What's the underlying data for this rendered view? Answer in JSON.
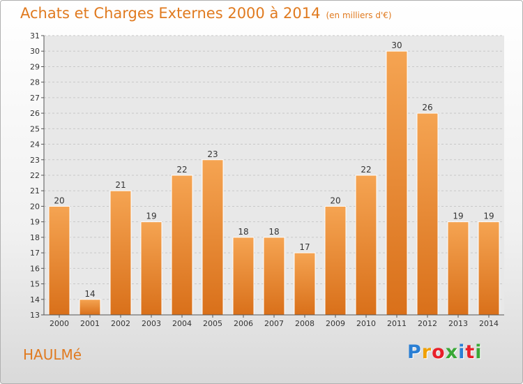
{
  "chart_data": {
    "type": "bar",
    "title": "Achats et Charges Externes 2000 à 2014",
    "unit": "(en milliers d'€)",
    "categories": [
      "2000",
      "2001",
      "2002",
      "2003",
      "2004",
      "2005",
      "2006",
      "2007",
      "2008",
      "2009",
      "2010",
      "2011",
      "2012",
      "2013",
      "2014"
    ],
    "values": [
      20,
      14,
      21,
      19,
      22,
      23,
      18,
      18,
      17,
      20,
      22,
      30,
      26,
      19,
      19
    ],
    "ylim": [
      13,
      31
    ],
    "yticks": [
      13,
      14,
      15,
      16,
      17,
      18,
      19,
      20,
      21,
      22,
      23,
      24,
      25,
      26,
      27,
      28,
      29,
      30,
      31
    ],
    "grid": true,
    "bar_color": "#f0892c",
    "xlabel": "",
    "ylabel": ""
  },
  "commune": "HAULMé",
  "logo": {
    "letters": [
      "P",
      "r",
      "o",
      "x",
      "i",
      "t",
      "i"
    ],
    "colors": [
      "#2a7fd4",
      "#f0a000",
      "#e8202a",
      "#3aa836",
      "#2a7fd4",
      "#e8202a",
      "#3aa836"
    ]
  },
  "accent_color": "#e07a1f"
}
